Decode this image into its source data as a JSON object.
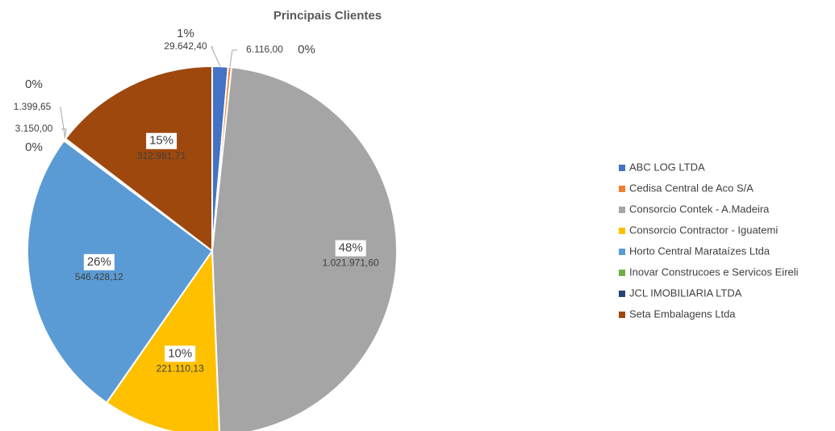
{
  "chart_data": {
    "type": "pie",
    "title": "Principais Clientes",
    "categories": [
      "ABC LOG LTDA",
      "Cedisa Central de Aco S/A",
      "Consorcio Contek - A.Madeira",
      "Consorcio Contractor - Iguatemi",
      "Horto Central Marataízes Ltda",
      "Inovar Construcoes e Servicos Eireli",
      "JCL IMOBILIARIA LTDA",
      "Seta Embalagens Ltda"
    ],
    "values": [
      29642.4,
      6116.0,
      1021971.6,
      221110.13,
      546428.12,
      3150.0,
      1399.65,
      312981.71
    ],
    "value_labels": [
      "29.642,40",
      "6.116,00",
      "1.021.971,60",
      "221.110,13",
      "546.428,12",
      "3.150,00",
      "1.399,65",
      "312.981,71"
    ],
    "percent_labels": [
      "1%",
      "0%",
      "48%",
      "10%",
      "26%",
      "0%",
      "0%",
      "15%"
    ],
    "colors": [
      "#4472c4",
      "#ed7d31",
      "#a5a5a5",
      "#ffc000",
      "#5b9bd5",
      "#70ad47",
      "#264478",
      "#9e480e"
    ],
    "legend": "right"
  }
}
